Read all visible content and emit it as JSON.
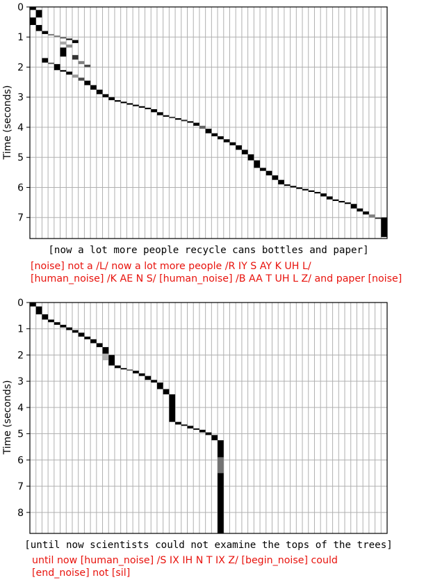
{
  "chart_data": [
    {
      "type": "heatmap",
      "title": "",
      "ylabel": "Time (seconds)",
      "ylim": [
        7.7,
        0
      ],
      "yticks": [
        0,
        1,
        2,
        3,
        4,
        5,
        6,
        7
      ],
      "grid": true,
      "grid_columns": 59,
      "xlabel": "[now a lot more people recycle cans bottles and paper]",
      "transcript_lines": [
        "[noise] not a /L/ now a lot more people /R IY S AY K UH L/",
        "[human_noise] /K AE N S/ [human_noise] /B AA T UH L Z/ and paper [noise]"
      ],
      "alignment_segments": [
        {
          "col": 0,
          "t0": 0.0,
          "t1": 0.1,
          "v": 1.0
        },
        {
          "col": 1,
          "t0": 0.1,
          "t1": 0.35,
          "v": 1.0
        },
        {
          "col": 0,
          "t0": 0.35,
          "t1": 0.6,
          "v": 1.0
        },
        {
          "col": 1,
          "t0": 0.6,
          "t1": 0.8,
          "v": 1.0
        },
        {
          "col": 2,
          "t0": 0.8,
          "t1": 0.9,
          "v": 1.0
        },
        {
          "col": 3,
          "t0": 0.9,
          "t1": 0.95,
          "v": 0.5
        },
        {
          "col": 4,
          "t0": 0.95,
          "t1": 1.0,
          "v": 0.5
        },
        {
          "col": 5,
          "t0": 1.0,
          "t1": 1.05,
          "v": 0.6
        },
        {
          "col": 6,
          "t0": 1.05,
          "t1": 1.1,
          "v": 0.9
        },
        {
          "col": 7,
          "t0": 1.1,
          "t1": 1.2,
          "v": 1.0
        },
        {
          "col": 5,
          "t0": 1.15,
          "t1": 1.25,
          "v": 0.35
        },
        {
          "col": 6,
          "t0": 1.25,
          "t1": 1.35,
          "v": 0.45
        },
        {
          "col": 5,
          "t0": 1.35,
          "t1": 1.65,
          "v": 1.0
        },
        {
          "col": 7,
          "t0": 1.6,
          "t1": 1.75,
          "v": 0.8
        },
        {
          "col": 8,
          "t0": 1.8,
          "t1": 1.9,
          "v": 0.5
        },
        {
          "col": 9,
          "t0": 1.92,
          "t1": 2.0,
          "v": 0.7
        },
        {
          "col": 2,
          "t0": 1.7,
          "t1": 1.85,
          "v": 1.0
        },
        {
          "col": 3,
          "t0": 1.85,
          "t1": 1.9,
          "v": 0.6
        },
        {
          "col": 4,
          "t0": 1.9,
          "t1": 2.1,
          "v": 1.0
        },
        {
          "col": 5,
          "t0": 2.1,
          "t1": 2.15,
          "v": 1.0
        },
        {
          "col": 6,
          "t0": 2.15,
          "t1": 2.25,
          "v": 1.0
        },
        {
          "col": 7,
          "t0": 2.25,
          "t1": 2.35,
          "v": 0.4
        },
        {
          "col": 8,
          "t0": 2.35,
          "t1": 2.45,
          "v": 0.7
        },
        {
          "col": 9,
          "t0": 2.45,
          "t1": 2.6,
          "v": 1.0
        },
        {
          "col": 10,
          "t0": 2.6,
          "t1": 2.75,
          "v": 1.0
        },
        {
          "col": 11,
          "t0": 2.75,
          "t1": 2.9,
          "v": 1.0
        },
        {
          "col": 12,
          "t0": 2.9,
          "t1": 3.0,
          "v": 1.0
        },
        {
          "col": 13,
          "t0": 3.0,
          "t1": 3.1,
          "v": 1.0
        },
        {
          "col": 14,
          "t0": 3.1,
          "t1": 3.15,
          "v": 1.0
        },
        {
          "col": 15,
          "t0": 3.15,
          "t1": 3.2,
          "v": 1.0
        },
        {
          "col": 16,
          "t0": 3.2,
          "t1": 3.25,
          "v": 1.0
        },
        {
          "col": 17,
          "t0": 3.25,
          "t1": 3.3,
          "v": 1.0
        },
        {
          "col": 18,
          "t0": 3.3,
          "t1": 3.35,
          "v": 1.0
        },
        {
          "col": 19,
          "t0": 3.35,
          "t1": 3.4,
          "v": 1.0
        },
        {
          "col": 20,
          "t0": 3.4,
          "t1": 3.5,
          "v": 1.0
        },
        {
          "col": 21,
          "t0": 3.5,
          "t1": 3.6,
          "v": 1.0
        },
        {
          "col": 22,
          "t0": 3.6,
          "t1": 3.65,
          "v": 1.0
        },
        {
          "col": 23,
          "t0": 3.65,
          "t1": 3.7,
          "v": 0.7
        },
        {
          "col": 24,
          "t0": 3.7,
          "t1": 3.75,
          "v": 1.0
        },
        {
          "col": 25,
          "t0": 3.75,
          "t1": 3.8,
          "v": 0.8
        },
        {
          "col": 26,
          "t0": 3.8,
          "t1": 3.85,
          "v": 1.0
        },
        {
          "col": 27,
          "t0": 3.85,
          "t1": 3.95,
          "v": 1.0
        },
        {
          "col": 28,
          "t0": 3.95,
          "t1": 4.05,
          "v": 0.6
        },
        {
          "col": 29,
          "t0": 4.05,
          "t1": 4.2,
          "v": 1.0
        },
        {
          "col": 30,
          "t0": 4.2,
          "t1": 4.3,
          "v": 1.0
        },
        {
          "col": 31,
          "t0": 4.3,
          "t1": 4.4,
          "v": 1.0
        },
        {
          "col": 32,
          "t0": 4.4,
          "t1": 4.5,
          "v": 1.0
        },
        {
          "col": 33,
          "t0": 4.5,
          "t1": 4.6,
          "v": 1.0
        },
        {
          "col": 34,
          "t0": 4.6,
          "t1": 4.75,
          "v": 1.0
        },
        {
          "col": 35,
          "t0": 4.75,
          "t1": 4.9,
          "v": 1.0
        },
        {
          "col": 36,
          "t0": 4.9,
          "t1": 5.1,
          "v": 1.0
        },
        {
          "col": 37,
          "t0": 5.1,
          "t1": 5.35,
          "v": 1.0
        },
        {
          "col": 38,
          "t0": 5.35,
          "t1": 5.45,
          "v": 1.0
        },
        {
          "col": 39,
          "t0": 5.45,
          "t1": 5.6,
          "v": 1.0
        },
        {
          "col": 40,
          "t0": 5.6,
          "t1": 5.75,
          "v": 1.0
        },
        {
          "col": 41,
          "t0": 5.75,
          "t1": 5.9,
          "v": 1.0
        },
        {
          "col": 42,
          "t0": 5.9,
          "t1": 5.95,
          "v": 1.0
        },
        {
          "col": 43,
          "t0": 5.95,
          "t1": 6.0,
          "v": 1.0
        },
        {
          "col": 44,
          "t0": 6.0,
          "t1": 6.05,
          "v": 1.0
        },
        {
          "col": 45,
          "t0": 6.05,
          "t1": 6.1,
          "v": 1.0
        },
        {
          "col": 46,
          "t0": 6.1,
          "t1": 6.15,
          "v": 1.0
        },
        {
          "col": 47,
          "t0": 6.15,
          "t1": 6.2,
          "v": 1.0
        },
        {
          "col": 48,
          "t0": 6.2,
          "t1": 6.3,
          "v": 1.0
        },
        {
          "col": 49,
          "t0": 6.3,
          "t1": 6.4,
          "v": 1.0
        },
        {
          "col": 50,
          "t0": 6.4,
          "t1": 6.45,
          "v": 1.0
        },
        {
          "col": 51,
          "t0": 6.45,
          "t1": 6.5,
          "v": 1.0
        },
        {
          "col": 52,
          "t0": 6.5,
          "t1": 6.55,
          "v": 1.0
        },
        {
          "col": 53,
          "t0": 6.55,
          "t1": 6.7,
          "v": 1.0
        },
        {
          "col": 54,
          "t0": 6.7,
          "t1": 6.8,
          "v": 1.0
        },
        {
          "col": 55,
          "t0": 6.8,
          "t1": 6.9,
          "v": 1.0
        },
        {
          "col": 56,
          "t0": 6.9,
          "t1": 7.0,
          "v": 0.5
        },
        {
          "col": 57,
          "t0": 7.0,
          "t1": 7.05,
          "v": 0.7
        },
        {
          "col": 58,
          "t0": 7.0,
          "t1": 7.65,
          "v": 1.0
        }
      ]
    },
    {
      "type": "heatmap",
      "title": "",
      "ylabel": "Time (seconds)",
      "ylim": [
        8.8,
        0
      ],
      "yticks": [
        0,
        1,
        2,
        3,
        4,
        5,
        6,
        7,
        8
      ],
      "grid": true,
      "grid_columns": 59,
      "xlabel": "[until now scientists could not examine the tops of the trees]",
      "transcript_lines": [
        "until now [human_noise] /S IX IH N T IX Z/ [begin_noise] could",
        "[end_noise] not [sil]"
      ],
      "alignment_segments": [
        {
          "col": 0,
          "t0": 0.0,
          "t1": 0.15,
          "v": 1.0
        },
        {
          "col": 1,
          "t0": 0.15,
          "t1": 0.45,
          "v": 1.0
        },
        {
          "col": 2,
          "t0": 0.45,
          "t1": 0.65,
          "v": 1.0
        },
        {
          "col": 3,
          "t0": 0.65,
          "t1": 0.75,
          "v": 1.0
        },
        {
          "col": 4,
          "t0": 0.75,
          "t1": 0.85,
          "v": 1.0
        },
        {
          "col": 5,
          "t0": 0.85,
          "t1": 0.95,
          "v": 1.0
        },
        {
          "col": 6,
          "t0": 0.95,
          "t1": 1.05,
          "v": 1.0
        },
        {
          "col": 7,
          "t0": 1.05,
          "t1": 1.15,
          "v": 1.0
        },
        {
          "col": 8,
          "t0": 1.15,
          "t1": 1.3,
          "v": 1.0
        },
        {
          "col": 9,
          "t0": 1.3,
          "t1": 1.4,
          "v": 1.0
        },
        {
          "col": 10,
          "t0": 1.4,
          "t1": 1.55,
          "v": 1.0
        },
        {
          "col": 11,
          "t0": 1.55,
          "t1": 1.7,
          "v": 1.0
        },
        {
          "col": 12,
          "t0": 1.7,
          "t1": 1.95,
          "v": 1.0
        },
        {
          "col": 12,
          "t0": 1.95,
          "t1": 2.2,
          "v": 0.3
        },
        {
          "col": 13,
          "t0": 2.0,
          "t1": 2.4,
          "v": 1.0
        },
        {
          "col": 14,
          "t0": 2.4,
          "t1": 2.5,
          "v": 1.0
        },
        {
          "col": 15,
          "t0": 2.5,
          "t1": 2.55,
          "v": 1.0
        },
        {
          "col": 16,
          "t0": 2.55,
          "t1": 2.6,
          "v": 0.6
        },
        {
          "col": 17,
          "t0": 2.6,
          "t1": 2.7,
          "v": 1.0
        },
        {
          "col": 18,
          "t0": 2.7,
          "t1": 2.8,
          "v": 1.0
        },
        {
          "col": 19,
          "t0": 2.8,
          "t1": 2.95,
          "v": 1.0
        },
        {
          "col": 20,
          "t0": 2.95,
          "t1": 3.05,
          "v": 1.0
        },
        {
          "col": 21,
          "t0": 3.05,
          "t1": 3.3,
          "v": 1.0
        },
        {
          "col": 22,
          "t0": 3.3,
          "t1": 3.5,
          "v": 1.0
        },
        {
          "col": 23,
          "t0": 3.5,
          "t1": 4.55,
          "v": 1.0
        },
        {
          "col": 24,
          "t0": 4.55,
          "t1": 4.65,
          "v": 1.0
        },
        {
          "col": 25,
          "t0": 4.65,
          "t1": 4.7,
          "v": 1.0
        },
        {
          "col": 26,
          "t0": 4.7,
          "t1": 4.8,
          "v": 1.0
        },
        {
          "col": 27,
          "t0": 4.8,
          "t1": 4.85,
          "v": 1.0
        },
        {
          "col": 28,
          "t0": 4.85,
          "t1": 4.95,
          "v": 1.0
        },
        {
          "col": 29,
          "t0": 4.95,
          "t1": 5.05,
          "v": 1.0
        },
        {
          "col": 30,
          "t0": 5.05,
          "t1": 5.25,
          "v": 1.0
        },
        {
          "col": 31,
          "t0": 5.25,
          "t1": 5.9,
          "v": 1.0
        },
        {
          "col": 31,
          "t0": 5.9,
          "t1": 6.5,
          "v": 0.55
        },
        {
          "col": 31,
          "t0": 6.5,
          "t1": 8.8,
          "v": 1.0
        }
      ]
    }
  ]
}
